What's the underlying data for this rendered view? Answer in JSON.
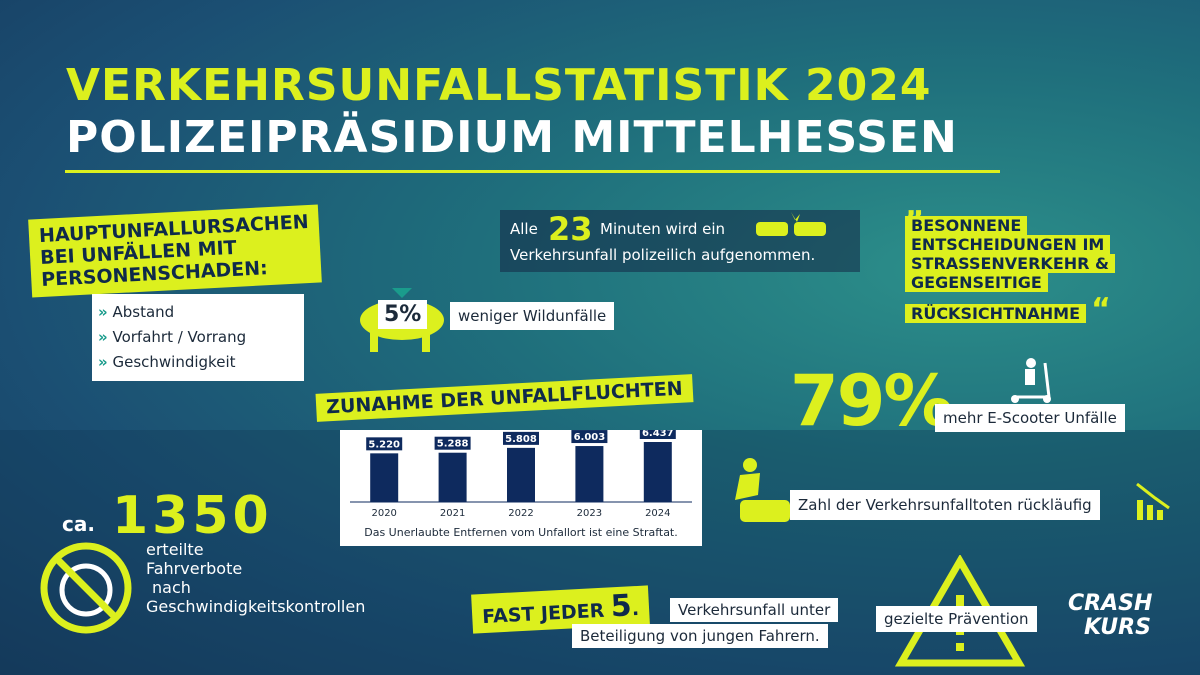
{
  "header": {
    "title": "VERKEHRSUNFALLSTATISTIK 2024",
    "subtitle": "POLIZEIPRÄSIDIUM MITTELHESSEN"
  },
  "causes": {
    "heading": [
      "HAUPTUNFALLURSACHEN",
      "BEI UNFÄLLEN MIT",
      "PERSONENSCHADEN:"
    ],
    "items": [
      "Abstand",
      "Vorfahrt / Vorrang",
      "Geschwindigkeit"
    ]
  },
  "frequency": {
    "prefix": "Alle",
    "number": "23",
    "line1": "Minuten wird ein",
    "line2": "Verkehrsunfall polizeilich aufgenommen."
  },
  "wildlife": {
    "value": "5%",
    "text": "weniger Wildunfälle"
  },
  "quote": {
    "open": "„",
    "lines": [
      "BESONNENE",
      "ENTSCHEIDUNGEN IM",
      "STRASSENVERKEHR &",
      "GEGENSEITIGE",
      "RÜCKSICHTNAHME"
    ],
    "close": "“"
  },
  "chart_data": {
    "type": "bar",
    "title": "ZUNAHME DER UNFALLFLUCHTEN",
    "categories": [
      "2020",
      "2021",
      "2022",
      "2023",
      "2024"
    ],
    "values": [
      5220,
      5288,
      5808,
      6003,
      6437
    ],
    "value_labels": [
      "5.220",
      "5.288",
      "5.808",
      "6.003",
      "6.437"
    ],
    "color": "#0e2a5e",
    "note": "Das Unerlaubte Entfernen vom Unfallort ist eine Straftat."
  },
  "escooter": {
    "value": "79%",
    "text": "mehr E-Scooter Unfälle"
  },
  "fatalities": {
    "text": "Zahl der Verkehrsunfalltoten rückläufig"
  },
  "bans": {
    "prefix": "ca.",
    "number": "1350",
    "lines": [
      "erteilte",
      "Fahrverbote",
      "nach",
      "Geschwindigkeitskontrollen"
    ]
  },
  "young": {
    "lead": "FAST JEDER",
    "number": "5",
    "dot": ".",
    "line1": "Verkehrsunfall unter",
    "line2": "Beteiligung von jungen Fahrern."
  },
  "prevention": {
    "text": "gezielte Prävention",
    "logo": [
      "CRASH",
      "KURS"
    ]
  }
}
